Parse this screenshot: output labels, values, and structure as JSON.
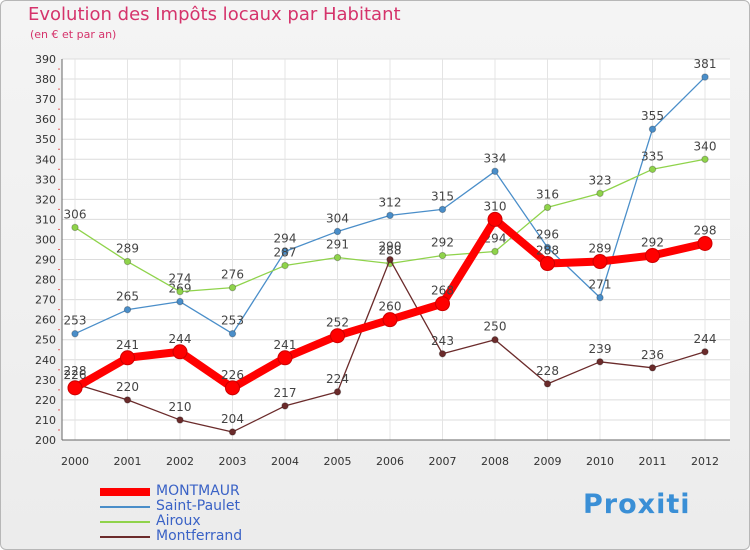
{
  "header": {
    "title": "Evolution des Impôts locaux par Habitant",
    "subtitle": "(en € et par an)"
  },
  "brand": "Proxiti",
  "chart_data": {
    "type": "line",
    "title": "Evolution des Impôts locaux par Habitant",
    "subtitle": "(en € et par an)",
    "xlabel": "",
    "ylabel": "",
    "x": [
      "2000",
      "2001",
      "2002",
      "2003",
      "2004",
      "2005",
      "2006",
      "2007",
      "2008",
      "2009",
      "2010",
      "2011",
      "2012"
    ],
    "ylim": [
      200,
      390
    ],
    "yticks": [
      200,
      210,
      220,
      230,
      240,
      250,
      260,
      270,
      280,
      290,
      300,
      310,
      320,
      330,
      340,
      350,
      360,
      370,
      380,
      390
    ],
    "grid": true,
    "legend_position": "bottom-left",
    "series": [
      {
        "name": "Saint-Paulet",
        "color": "#4a8ec9",
        "values": [
          253,
          265,
          269,
          253,
          294,
          304,
          312,
          315,
          334,
          296,
          271,
          355,
          381
        ]
      },
      {
        "name": "Airoux",
        "color": "#8fd34b",
        "values": [
          306,
          289,
          274,
          276,
          287,
          291,
          288,
          292,
          294,
          316,
          323,
          335,
          340
        ]
      },
      {
        "name": "Montferrand",
        "color": "#6b2b2b",
        "values": [
          228,
          220,
          210,
          204,
          217,
          224,
          290,
          243,
          250,
          228,
          239,
          236,
          244
        ]
      },
      {
        "name": "MONTMAUR",
        "color": "#ff0000",
        "values": [
          226,
          241,
          244,
          226,
          241,
          252,
          260,
          268,
          310,
          288,
          289,
          292,
          298
        ]
      }
    ],
    "legend_order": [
      "MONTMAUR",
      "Saint-Paulet",
      "Airoux",
      "Montferrand"
    ]
  }
}
